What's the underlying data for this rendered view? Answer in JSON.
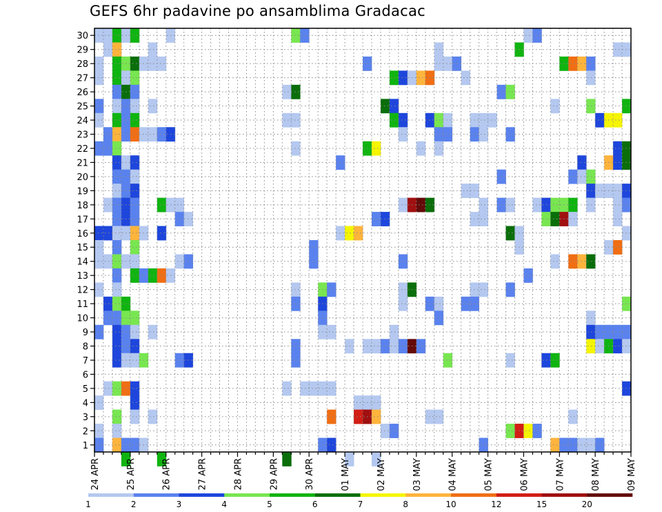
{
  "chart_data": {
    "type": "heatmap",
    "title": "GEFS 6hr padavine po ansamblima Gradacac",
    "x_tick_labels": [
      "24 APR",
      "25 APR",
      "26 APR",
      "27 APR",
      "28 APR",
      "29 APR",
      "30 APR",
      "01 MAY",
      "02 MAY",
      "03 MAY",
      "04 MAY",
      "05 MAY",
      "06 MAY",
      "07 MAY",
      "08 MAY",
      "09 MAY"
    ],
    "xlim": [
      0,
      60
    ],
    "ylim": [
      0.5,
      30.5
    ],
    "y_ticks": [
      1,
      2,
      3,
      4,
      5,
      6,
      7,
      8,
      9,
      10,
      11,
      12,
      13,
      14,
      15,
      16,
      17,
      18,
      19,
      20,
      21,
      22,
      23,
      24,
      25,
      26,
      27,
      28,
      29,
      30
    ],
    "grid": "dotted",
    "colorbar": {
      "placement": "bottom",
      "tick_labels": [
        "1",
        "2",
        "3",
        "4",
        "5",
        "6",
        "7",
        "8",
        "10",
        "12",
        "15",
        "20"
      ],
      "colors": [
        "#b4c8f0",
        "#5a82ee",
        "#1e46dc",
        "#78e650",
        "#10b410",
        "#0a6e0a",
        "#f5f500",
        "#ffb43c",
        "#f06e14",
        "#d21e14",
        "#a01010",
        "#640a0a"
      ]
    },
    "cells": [
      [
        0,
        30,
        1
      ],
      [
        1,
        30,
        1
      ],
      [
        2,
        30,
        5
      ],
      [
        3,
        30,
        1
      ],
      [
        4,
        30,
        5
      ],
      [
        8,
        30,
        1
      ],
      [
        22,
        30,
        4
      ],
      [
        23,
        30,
        2
      ],
      [
        48,
        30,
        1
      ],
      [
        49,
        30,
        2
      ],
      [
        1,
        29,
        1
      ],
      [
        2,
        29,
        8
      ],
      [
        6,
        29,
        1
      ],
      [
        38,
        29,
        1
      ],
      [
        47,
        29,
        5
      ],
      [
        58,
        29,
        1
      ],
      [
        59,
        29,
        1
      ],
      [
        0,
        28,
        1
      ],
      [
        2,
        28,
        5
      ],
      [
        3,
        28,
        4
      ],
      [
        4,
        28,
        6
      ],
      [
        5,
        28,
        1
      ],
      [
        6,
        28,
        1
      ],
      [
        7,
        28,
        1
      ],
      [
        30,
        28,
        2
      ],
      [
        38,
        28,
        1
      ],
      [
        39,
        28,
        1
      ],
      [
        40,
        28,
        2
      ],
      [
        52,
        28,
        5
      ],
      [
        53,
        28,
        9
      ],
      [
        54,
        28,
        8
      ],
      [
        55,
        28,
        2
      ],
      [
        0,
        27,
        1
      ],
      [
        2,
        27,
        5
      ],
      [
        3,
        27,
        1
      ],
      [
        4,
        27,
        4
      ],
      [
        33,
        27,
        5
      ],
      [
        34,
        27,
        3
      ],
      [
        35,
        27,
        1
      ],
      [
        36,
        27,
        8
      ],
      [
        37,
        27,
        9
      ],
      [
        41,
        27,
        1
      ],
      [
        55,
        27,
        1
      ],
      [
        2,
        26,
        2
      ],
      [
        3,
        26,
        6
      ],
      [
        4,
        26,
        2
      ],
      [
        21,
        26,
        1
      ],
      [
        22,
        26,
        6
      ],
      [
        45,
        26,
        2
      ],
      [
        46,
        26,
        4
      ],
      [
        0,
        25,
        2
      ],
      [
        2,
        25,
        1
      ],
      [
        3,
        25,
        2
      ],
      [
        4,
        25,
        1
      ],
      [
        6,
        25,
        1
      ],
      [
        32,
        25,
        6
      ],
      [
        33,
        25,
        3
      ],
      [
        51,
        25,
        1
      ],
      [
        55,
        25,
        4
      ],
      [
        59,
        25,
        5
      ],
      [
        0,
        24,
        1
      ],
      [
        2,
        24,
        5
      ],
      [
        3,
        24,
        2
      ],
      [
        4,
        24,
        5
      ],
      [
        21,
        24,
        1
      ],
      [
        22,
        24,
        1
      ],
      [
        33,
        24,
        5
      ],
      [
        34,
        24,
        3
      ],
      [
        37,
        24,
        3
      ],
      [
        38,
        24,
        4
      ],
      [
        39,
        24,
        1
      ],
      [
        42,
        24,
        1
      ],
      [
        43,
        24,
        1
      ],
      [
        44,
        24,
        1
      ],
      [
        56,
        24,
        3
      ],
      [
        57,
        24,
        7
      ],
      [
        58,
        24,
        7
      ],
      [
        1,
        23,
        2
      ],
      [
        2,
        23,
        8
      ],
      [
        3,
        23,
        2
      ],
      [
        4,
        23,
        9
      ],
      [
        5,
        23,
        1
      ],
      [
        6,
        23,
        1
      ],
      [
        7,
        23,
        2
      ],
      [
        8,
        23,
        3
      ],
      [
        34,
        23,
        1
      ],
      [
        38,
        23,
        2
      ],
      [
        39,
        23,
        2
      ],
      [
        42,
        23,
        2
      ],
      [
        43,
        23,
        1
      ],
      [
        46,
        23,
        2
      ],
      [
        0,
        22,
        2
      ],
      [
        1,
        22,
        2
      ],
      [
        2,
        22,
        4
      ],
      [
        22,
        22,
        1
      ],
      [
        30,
        22,
        5
      ],
      [
        31,
        22,
        7
      ],
      [
        36,
        22,
        1
      ],
      [
        38,
        22,
        1
      ],
      [
        58,
        22,
        3
      ],
      [
        59,
        22,
        6
      ],
      [
        2,
        21,
        3
      ],
      [
        3,
        21,
        1
      ],
      [
        4,
        21,
        3
      ],
      [
        27,
        21,
        2
      ],
      [
        54,
        21,
        3
      ],
      [
        57,
        21,
        8
      ],
      [
        58,
        21,
        3
      ],
      [
        59,
        21,
        6
      ],
      [
        60,
        21,
        6
      ],
      [
        2,
        20,
        2
      ],
      [
        3,
        20,
        2
      ],
      [
        4,
        20,
        1
      ],
      [
        45,
        20,
        2
      ],
      [
        53,
        20,
        2
      ],
      [
        54,
        20,
        1
      ],
      [
        55,
        20,
        4
      ],
      [
        2,
        19,
        1
      ],
      [
        3,
        19,
        2
      ],
      [
        4,
        19,
        3
      ],
      [
        41,
        19,
        1
      ],
      [
        42,
        19,
        1
      ],
      [
        55,
        19,
        3
      ],
      [
        56,
        19,
        1
      ],
      [
        57,
        19,
        1
      ],
      [
        58,
        19,
        1
      ],
      [
        59,
        19,
        3
      ],
      [
        1,
        18,
        1
      ],
      [
        2,
        18,
        2
      ],
      [
        3,
        18,
        3
      ],
      [
        4,
        18,
        2
      ],
      [
        7,
        18,
        5
      ],
      [
        8,
        18,
        1
      ],
      [
        9,
        18,
        1
      ],
      [
        34,
        18,
        1
      ],
      [
        35,
        18,
        11
      ],
      [
        36,
        18,
        12
      ],
      [
        37,
        18,
        6
      ],
      [
        43,
        18,
        1
      ],
      [
        45,
        18,
        2
      ],
      [
        46,
        18,
        1
      ],
      [
        49,
        18,
        1
      ],
      [
        50,
        18,
        3
      ],
      [
        51,
        18,
        4
      ],
      [
        52,
        18,
        4
      ],
      [
        53,
        18,
        5
      ],
      [
        55,
        18,
        1
      ],
      [
        58,
        18,
        1
      ],
      [
        59,
        18,
        2
      ],
      [
        2,
        17,
        2
      ],
      [
        3,
        17,
        3
      ],
      [
        4,
        17,
        2
      ],
      [
        9,
        17,
        2
      ],
      [
        10,
        17,
        1
      ],
      [
        31,
        17,
        2
      ],
      [
        32,
        17,
        3
      ],
      [
        42,
        17,
        1
      ],
      [
        43,
        17,
        1
      ],
      [
        50,
        17,
        4
      ],
      [
        51,
        17,
        6
      ],
      [
        52,
        17,
        11
      ],
      [
        53,
        17,
        1
      ],
      [
        58,
        17,
        1
      ],
      [
        0,
        16,
        3
      ],
      [
        1,
        16,
        3
      ],
      [
        2,
        16,
        1
      ],
      [
        3,
        16,
        1
      ],
      [
        4,
        16,
        8
      ],
      [
        5,
        16,
        1
      ],
      [
        7,
        16,
        3
      ],
      [
        27,
        16,
        1
      ],
      [
        28,
        16,
        7
      ],
      [
        29,
        16,
        8
      ],
      [
        46,
        16,
        6
      ],
      [
        47,
        16,
        1
      ],
      [
        59,
        16,
        1
      ],
      [
        0,
        15,
        1
      ],
      [
        2,
        15,
        2
      ],
      [
        4,
        15,
        4
      ],
      [
        24,
        15,
        2
      ],
      [
        47,
        15,
        1
      ],
      [
        57,
        15,
        1
      ],
      [
        58,
        15,
        9
      ],
      [
        0,
        14,
        1
      ],
      [
        1,
        14,
        1
      ],
      [
        2,
        14,
        4
      ],
      [
        3,
        14,
        1
      ],
      [
        4,
        14,
        1
      ],
      [
        9,
        14,
        1
      ],
      [
        10,
        14,
        2
      ],
      [
        24,
        14,
        2
      ],
      [
        34,
        14,
        2
      ],
      [
        51,
        14,
        1
      ],
      [
        53,
        14,
        9
      ],
      [
        54,
        14,
        8
      ],
      [
        55,
        14,
        6
      ],
      [
        2,
        13,
        2
      ],
      [
        4,
        13,
        5
      ],
      [
        5,
        13,
        2
      ],
      [
        6,
        13,
        5
      ],
      [
        7,
        13,
        9
      ],
      [
        8,
        13,
        1
      ],
      [
        48,
        13,
        2
      ],
      [
        0,
        12,
        1
      ],
      [
        2,
        12,
        1
      ],
      [
        22,
        12,
        1
      ],
      [
        25,
        12,
        4
      ],
      [
        26,
        12,
        2
      ],
      [
        34,
        12,
        1
      ],
      [
        35,
        12,
        6
      ],
      [
        42,
        12,
        1
      ],
      [
        43,
        12,
        1
      ],
      [
        46,
        12,
        2
      ],
      [
        1,
        11,
        3
      ],
      [
        2,
        11,
        4
      ],
      [
        3,
        11,
        5
      ],
      [
        22,
        11,
        2
      ],
      [
        25,
        11,
        3
      ],
      [
        34,
        11,
        1
      ],
      [
        37,
        11,
        2
      ],
      [
        38,
        11,
        1
      ],
      [
        41,
        11,
        2
      ],
      [
        42,
        11,
        2
      ],
      [
        59,
        11,
        4
      ],
      [
        1,
        10,
        2
      ],
      [
        2,
        10,
        2
      ],
      [
        3,
        10,
        4
      ],
      [
        4,
        10,
        4
      ],
      [
        25,
        10,
        2
      ],
      [
        38,
        10,
        2
      ],
      [
        55,
        10,
        1
      ],
      [
        0,
        9,
        2
      ],
      [
        2,
        9,
        3
      ],
      [
        3,
        9,
        2
      ],
      [
        4,
        9,
        1
      ],
      [
        6,
        9,
        1
      ],
      [
        25,
        9,
        1
      ],
      [
        26,
        9,
        1
      ],
      [
        33,
        9,
        1
      ],
      [
        55,
        9,
        3
      ],
      [
        56,
        9,
        2
      ],
      [
        57,
        9,
        2
      ],
      [
        58,
        9,
        2
      ],
      [
        59,
        9,
        2
      ],
      [
        2,
        8,
        3
      ],
      [
        3,
        8,
        2
      ],
      [
        4,
        8,
        3
      ],
      [
        22,
        8,
        2
      ],
      [
        28,
        8,
        1
      ],
      [
        30,
        8,
        1
      ],
      [
        31,
        8,
        1
      ],
      [
        32,
        8,
        2
      ],
      [
        33,
        8,
        1
      ],
      [
        34,
        8,
        2
      ],
      [
        35,
        8,
        12
      ],
      [
        36,
        8,
        2
      ],
      [
        55,
        8,
        7
      ],
      [
        56,
        8,
        1
      ],
      [
        57,
        8,
        5
      ],
      [
        58,
        8,
        3
      ],
      [
        59,
        8,
        1
      ],
      [
        2,
        7,
        3
      ],
      [
        3,
        7,
        1
      ],
      [
        4,
        7,
        1
      ],
      [
        5,
        7,
        4
      ],
      [
        9,
        7,
        2
      ],
      [
        10,
        7,
        3
      ],
      [
        22,
        7,
        2
      ],
      [
        39,
        7,
        4
      ],
      [
        46,
        7,
        1
      ],
      [
        50,
        7,
        3
      ],
      [
        51,
        7,
        5
      ],
      [
        1,
        5,
        1
      ],
      [
        2,
        5,
        4
      ],
      [
        3,
        5,
        9
      ],
      [
        4,
        5,
        3
      ],
      [
        21,
        5,
        1
      ],
      [
        23,
        5,
        1
      ],
      [
        24,
        5,
        1
      ],
      [
        25,
        5,
        1
      ],
      [
        26,
        5,
        1
      ],
      [
        59,
        5,
        3
      ],
      [
        0,
        4,
        1
      ],
      [
        4,
        4,
        3
      ],
      [
        29,
        4,
        1
      ],
      [
        30,
        4,
        1
      ],
      [
        31,
        4,
        1
      ],
      [
        2,
        3,
        4
      ],
      [
        4,
        3,
        1
      ],
      [
        6,
        3,
        1
      ],
      [
        26,
        3,
        9
      ],
      [
        29,
        3,
        10
      ],
      [
        30,
        3,
        11
      ],
      [
        31,
        3,
        8
      ],
      [
        37,
        3,
        1
      ],
      [
        38,
        3,
        1
      ],
      [
        53,
        3,
        1
      ],
      [
        0,
        2,
        1
      ],
      [
        2,
        2,
        1
      ],
      [
        32,
        2,
        1
      ],
      [
        33,
        2,
        2
      ],
      [
        46,
        2,
        4
      ],
      [
        47,
        2,
        10
      ],
      [
        48,
        2,
        7
      ],
      [
        49,
        2,
        2
      ],
      [
        0,
        1,
        2
      ],
      [
        2,
        1,
        8
      ],
      [
        3,
        1,
        2
      ],
      [
        4,
        1,
        2
      ],
      [
        5,
        1,
        1
      ],
      [
        25,
        1,
        2
      ],
      [
        26,
        1,
        3
      ],
      [
        43,
        1,
        2
      ],
      [
        51,
        1,
        8
      ],
      [
        52,
        1,
        2
      ],
      [
        53,
        1,
        2
      ],
      [
        54,
        1,
        1
      ],
      [
        55,
        1,
        1
      ],
      [
        56,
        1,
        2
      ],
      [
        3,
        0,
        5
      ],
      [
        7,
        0,
        5
      ],
      [
        21,
        0,
        6
      ],
      [
        28,
        0,
        1
      ],
      [
        31,
        0,
        1
      ]
    ]
  }
}
